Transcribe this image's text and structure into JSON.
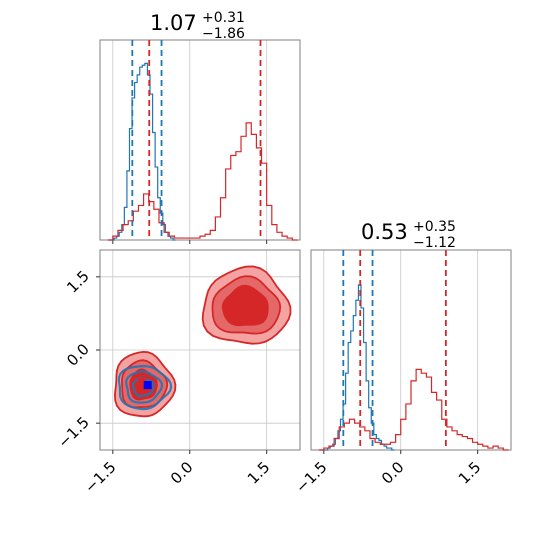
{
  "colors": {
    "red": "#d62728",
    "blue": "#1f77b4",
    "red_fill_light": "#f4a3a3",
    "red_fill_mid": "#e56868",
    "red_fill_dark": "#d62728",
    "blue_fill_light": "#9fc4e3",
    "blue_fill_dark": "#2f5fa8"
  },
  "chart_data": [
    {
      "type": "histogram",
      "panel": "param1-marginal",
      "title": {
        "value": "1.07",
        "plus": "+0.31",
        "minus": "−1.86"
      },
      "xlim": [
        -1.75,
        2.15
      ],
      "ylim": [
        0,
        1
      ],
      "grid": true,
      "series": [
        {
          "color": "#1f77b4",
          "x": [
            -1.55,
            -1.5,
            -1.45,
            -1.4,
            -1.35,
            -1.3,
            -1.25,
            -1.2,
            -1.15,
            -1.1,
            -1.05,
            -1.0,
            -0.95,
            -0.9,
            -0.85,
            -0.8,
            -0.75,
            -0.7,
            -0.65,
            -0.6,
            -0.55,
            -0.5,
            -0.45,
            -0.4,
            -0.35,
            -0.3
          ],
          "values": [
            0,
            0,
            0.01,
            0.02,
            0.04,
            0.08,
            0.17,
            0.36,
            0.58,
            0.74,
            0.82,
            0.86,
            0.9,
            0.91,
            0.92,
            0.86,
            0.76,
            0.56,
            0.38,
            0.22,
            0.14,
            0.08,
            0.04,
            0.02,
            0.01,
            0
          ]
        },
        {
          "color": "#d62728",
          "x": [
            -1.55,
            -1.45,
            -1.35,
            -1.25,
            -1.15,
            -1.05,
            -0.95,
            -0.85,
            -0.75,
            -0.65,
            -0.55,
            -0.45,
            -0.35,
            -0.25,
            -0.15,
            -0.05,
            0.05,
            0.15,
            0.25,
            0.35,
            0.45,
            0.55,
            0.65,
            0.75,
            0.85,
            0.95,
            1.05,
            1.15,
            1.25,
            1.35,
            1.45,
            1.55,
            1.65,
            1.75,
            1.85,
            1.95,
            2.05
          ],
          "values": [
            0,
            0.02,
            0.05,
            0.08,
            0.1,
            0.15,
            0.18,
            0.24,
            0.2,
            0.16,
            0.09,
            0.04,
            0.02,
            0.01,
            0.01,
            0.01,
            0.01,
            0.01,
            0.02,
            0.03,
            0.05,
            0.12,
            0.22,
            0.37,
            0.44,
            0.46,
            0.54,
            0.61,
            0.55,
            0.48,
            0.4,
            0.18,
            0.08,
            0.04,
            0.02,
            0.01,
            0
          ]
        }
      ],
      "vlines": [
        {
          "color": "#1f77b4",
          "x": [
            -1.12,
            -0.55
          ],
          "style": "dashed"
        },
        {
          "color": "#d62728",
          "x": [
            -0.79,
            1.38
          ],
          "style": "dashed"
        }
      ]
    },
    {
      "type": "histogram",
      "panel": "param2-marginal",
      "title": {
        "value": "0.53",
        "plus": "+0.35",
        "minus": "−1.12"
      },
      "xlim": [
        -1.75,
        2.15
      ],
      "ylim": [
        0,
        1
      ],
      "grid": true,
      "series": [
        {
          "color": "#1f77b4",
          "x": [
            -1.55,
            -1.5,
            -1.45,
            -1.4,
            -1.35,
            -1.3,
            -1.25,
            -1.2,
            -1.15,
            -1.1,
            -1.05,
            -1.0,
            -0.95,
            -0.9,
            -0.85,
            -0.8,
            -0.75,
            -0.7,
            -0.65,
            -0.6,
            -0.55,
            -0.5,
            -0.45,
            -0.4,
            -0.35,
            -0.3,
            -0.25,
            -0.2,
            -0.15
          ],
          "values": [
            0,
            0,
            0,
            0.01,
            0.02,
            0.03,
            0.06,
            0.1,
            0.16,
            0.24,
            0.4,
            0.56,
            0.62,
            0.7,
            0.78,
            0.86,
            0.74,
            0.56,
            0.36,
            0.22,
            0.14,
            0.08,
            0.06,
            0.05,
            0.03,
            0.02,
            0.01,
            0.01,
            0
          ]
        },
        {
          "color": "#d62728",
          "x": [
            -1.55,
            -1.45,
            -1.35,
            -1.25,
            -1.15,
            -1.05,
            -0.95,
            -0.85,
            -0.75,
            -0.65,
            -0.55,
            -0.45,
            -0.35,
            -0.25,
            -0.15,
            -0.05,
            0.05,
            0.15,
            0.25,
            0.35,
            0.45,
            0.55,
            0.65,
            0.75,
            0.85,
            0.95,
            1.05,
            1.15,
            1.25,
            1.35,
            1.45,
            1.55,
            1.65,
            1.75,
            1.85,
            1.95,
            2.05
          ],
          "values": [
            0,
            0.01,
            0.02,
            0.06,
            0.12,
            0.14,
            0.16,
            0.14,
            0.12,
            0.1,
            0.06,
            0.04,
            0.03,
            0.03,
            0.04,
            0.08,
            0.16,
            0.24,
            0.36,
            0.42,
            0.4,
            0.38,
            0.3,
            0.26,
            0.16,
            0.12,
            0.1,
            0.08,
            0.07,
            0.06,
            0.04,
            0.03,
            0.02,
            0.01,
            0.02,
            0.01,
            0
          ]
        }
      ],
      "vlines": [
        {
          "color": "#1f77b4",
          "x": [
            -1.12,
            -0.55
          ],
          "style": "dashed"
        },
        {
          "color": "#d62728",
          "x": [
            -0.79,
            0.88
          ],
          "style": "dashed"
        }
      ]
    },
    {
      "type": "contour",
      "panel": "param1-vs-param2",
      "xlim": [
        -1.75,
        2.15
      ],
      "ylim": [
        -2.05,
        2.05
      ],
      "grid": true,
      "blobs": [
        {
          "color": "#d62728",
          "cx": 1.09,
          "cy": 0.88,
          "levels": [
            [
              0.84,
              0.78
            ],
            [
              0.66,
              0.58
            ],
            [
              0.44,
              0.4
            ]
          ]
        },
        {
          "color": "#d62728",
          "cx": -0.91,
          "cy": -0.72,
          "levels": [
            [
              0.58,
              0.66
            ],
            [
              0.44,
              0.48
            ],
            [
              0.26,
              0.3
            ]
          ]
        },
        {
          "color": "#1f77b4",
          "cx": -0.91,
          "cy": -0.76,
          "levels": [
            [
              0.5,
              0.44
            ],
            [
              0.34,
              0.32
            ],
            [
              0.2,
              0.18
            ]
          ]
        }
      ],
      "markers": [
        {
          "color": "#d62728",
          "x": 0.95,
          "y": 1.07
        },
        {
          "color": "#d62728",
          "x": 1.34,
          "y": 0.66
        },
        {
          "color": "#d62728",
          "x": -0.93,
          "y": -0.65
        },
        {
          "color": "#0000ff",
          "x": -0.82,
          "y": -0.72
        }
      ]
    }
  ],
  "axes": {
    "left_ticks": [
      {
        "label": "1.5",
        "value": 1.5
      },
      {
        "label": "0.0",
        "value": 0.0
      },
      {
        "label": "−1.5",
        "value": -1.5
      }
    ],
    "bottom_ticks_left": [
      {
        "label": "−1.5",
        "value": -1.5
      },
      {
        "label": "0.0",
        "value": 0.0
      },
      {
        "label": "1.5",
        "value": 1.5
      }
    ],
    "bottom_ticks_right": [
      {
        "label": "−1.5",
        "value": -1.5
      },
      {
        "label": "0.0",
        "value": 0.0
      },
      {
        "label": "1.5",
        "value": 1.5
      }
    ]
  }
}
